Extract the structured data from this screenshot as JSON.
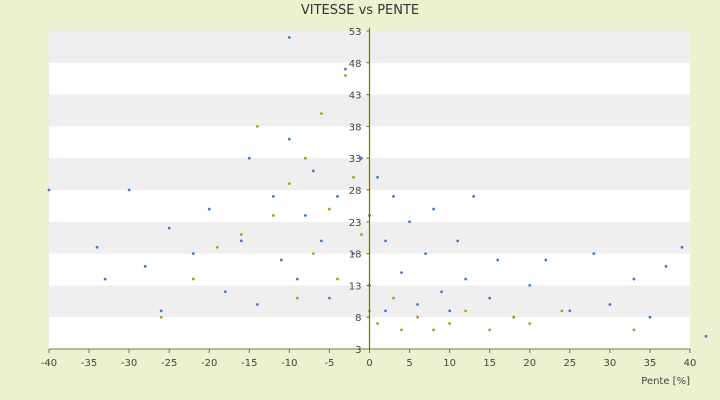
{
  "chart_data": {
    "type": "scatter",
    "title": "VITESSE vs PENTE",
    "xlabel": "Pente [%]",
    "ylabel": "",
    "xlim": [
      -40,
      40
    ],
    "ylim": [
      3,
      53
    ],
    "xticks": [
      -40,
      -35,
      -30,
      -25,
      -20,
      -15,
      -10,
      -5,
      0,
      5,
      10,
      15,
      20,
      25,
      30,
      35,
      40
    ],
    "yticks": [
      3,
      8,
      13,
      18,
      23,
      28,
      33,
      38,
      43,
      48,
      53
    ],
    "grid": "horizontal alternating bands",
    "legend": "none",
    "series": [
      {
        "color": "#3a7fd5",
        "points": [
          [
            -40,
            28
          ],
          [
            -34,
            19
          ],
          [
            -33,
            14
          ],
          [
            -30,
            28
          ],
          [
            -28,
            16
          ],
          [
            -26,
            9
          ],
          [
            -25,
            22
          ],
          [
            -22,
            18
          ],
          [
            -20,
            25
          ],
          [
            -18,
            12
          ],
          [
            -16,
            20
          ],
          [
            -15,
            33
          ],
          [
            -14,
            10
          ],
          [
            -12,
            27
          ],
          [
            -11,
            17
          ],
          [
            -10,
            52
          ],
          [
            -10,
            36
          ],
          [
            -9,
            14
          ],
          [
            -8,
            24
          ],
          [
            -7,
            31
          ],
          [
            -6,
            20
          ],
          [
            -5,
            11
          ],
          [
            -4,
            27
          ],
          [
            -3,
            47
          ],
          [
            -2,
            18
          ],
          [
            -1,
            33
          ],
          [
            0,
            24
          ],
          [
            0,
            13
          ],
          [
            1,
            30
          ],
          [
            2,
            20
          ],
          [
            2,
            9
          ],
          [
            3,
            27
          ],
          [
            4,
            15
          ],
          [
            5,
            23
          ],
          [
            6,
            10
          ],
          [
            7,
            18
          ],
          [
            8,
            25
          ],
          [
            9,
            12
          ],
          [
            10,
            9
          ],
          [
            11,
            20
          ],
          [
            12,
            14
          ],
          [
            13,
            27
          ],
          [
            15,
            11
          ],
          [
            16,
            17
          ],
          [
            18,
            8
          ],
          [
            20,
            13
          ],
          [
            22,
            17
          ],
          [
            25,
            9
          ],
          [
            28,
            18
          ],
          [
            30,
            10
          ],
          [
            33,
            14
          ],
          [
            35,
            8
          ],
          [
            37,
            16
          ],
          [
            39,
            19
          ],
          [
            42,
            5
          ]
        ]
      },
      {
        "color": "#a8a020",
        "points": [
          [
            -26,
            8
          ],
          [
            -22,
            14
          ],
          [
            -19,
            19
          ],
          [
            -16,
            21
          ],
          [
            -14,
            38
          ],
          [
            -12,
            24
          ],
          [
            -10,
            29
          ],
          [
            -9,
            11
          ],
          [
            -8,
            33
          ],
          [
            -7,
            18
          ],
          [
            -6,
            40
          ],
          [
            -5,
            25
          ],
          [
            -4,
            14
          ],
          [
            -3,
            46
          ],
          [
            -2,
            30
          ],
          [
            -1,
            21
          ],
          [
            0,
            9
          ],
          [
            1,
            7
          ],
          [
            3,
            11
          ],
          [
            4,
            6
          ],
          [
            6,
            8
          ],
          [
            8,
            6
          ],
          [
            10,
            7
          ],
          [
            12,
            9
          ],
          [
            15,
            6
          ],
          [
            18,
            8
          ],
          [
            20,
            7
          ],
          [
            24,
            9
          ],
          [
            33,
            6
          ]
        ]
      }
    ]
  }
}
